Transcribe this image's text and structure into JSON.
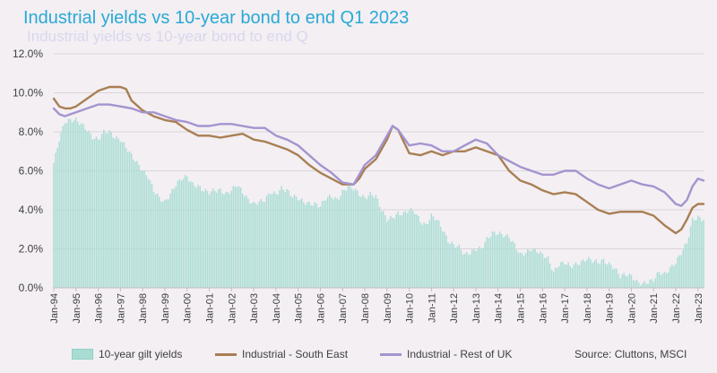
{
  "chart_data": {
    "type": "bar+line",
    "title": "Industrial yields vs 10-year bond to end Q1 2023",
    "subtitle_ghost": "Industrial yields vs 10-year bond to end Q",
    "source": "Source: Cluttons, MSCI",
    "y_ticks": [
      "0.0%",
      "2.0%",
      "4.0%",
      "6.0%",
      "8.0%",
      "10.0%",
      "12.0%"
    ],
    "ylim": [
      0,
      12
    ],
    "x_ticks": [
      "Jan-94",
      "Jan-95",
      "Jan-96",
      "Jan-97",
      "Jan-98",
      "Jan-99",
      "Jan-00",
      "Jan-01",
      "Jan-02",
      "Jan-03",
      "Jan-04",
      "Jan-05",
      "Jan-06",
      "Jan-07",
      "Jan-08",
      "Jan-09",
      "Jan-10",
      "Jan-11",
      "Jan-12",
      "Jan-13",
      "Jan-14",
      "Jan-15",
      "Jan-16",
      "Jan-17",
      "Jan-18",
      "Jan-19",
      "Jan-20",
      "Jan-21",
      "Jan-22",
      "Jan-23"
    ],
    "x_range": [
      1994.0,
      2023.25
    ],
    "legend_position": "bottom",
    "series": [
      {
        "name": "10-year gilt yields",
        "kind": "bar",
        "color": "#a9ddd4",
        "points": [
          [
            1994.0,
            6.4
          ],
          [
            1994.25,
            7.6
          ],
          [
            1994.5,
            8.5
          ],
          [
            1994.75,
            8.6
          ],
          [
            1995.0,
            8.6
          ],
          [
            1995.25,
            8.4
          ],
          [
            1995.5,
            8.1
          ],
          [
            1995.75,
            7.7
          ],
          [
            1996.0,
            7.6
          ],
          [
            1996.25,
            8.0
          ],
          [
            1996.5,
            8.0
          ],
          [
            1996.75,
            7.7
          ],
          [
            1997.0,
            7.6
          ],
          [
            1997.25,
            7.2
          ],
          [
            1997.5,
            6.8
          ],
          [
            1997.75,
            6.4
          ],
          [
            1998.0,
            6.0
          ],
          [
            1998.25,
            5.7
          ],
          [
            1998.5,
            5.0
          ],
          [
            1998.75,
            4.6
          ],
          [
            1999.0,
            4.4
          ],
          [
            1999.25,
            4.8
          ],
          [
            1999.5,
            5.3
          ],
          [
            1999.75,
            5.6
          ],
          [
            2000.0,
            5.7
          ],
          [
            2000.25,
            5.3
          ],
          [
            2000.5,
            5.2
          ],
          [
            2000.75,
            5.0
          ],
          [
            2001.0,
            4.9
          ],
          [
            2001.25,
            5.0
          ],
          [
            2001.5,
            5.0
          ],
          [
            2001.75,
            4.8
          ],
          [
            2002.0,
            5.0
          ],
          [
            2002.25,
            5.3
          ],
          [
            2002.5,
            4.9
          ],
          [
            2002.75,
            4.5
          ],
          [
            2003.0,
            4.3
          ],
          [
            2003.25,
            4.4
          ],
          [
            2003.5,
            4.5
          ],
          [
            2003.75,
            4.9
          ],
          [
            2004.0,
            4.8
          ],
          [
            2004.25,
            5.1
          ],
          [
            2004.5,
            5.0
          ],
          [
            2004.75,
            4.7
          ],
          [
            2005.0,
            4.6
          ],
          [
            2005.25,
            4.4
          ],
          [
            2005.5,
            4.3
          ],
          [
            2005.75,
            4.3
          ],
          [
            2006.0,
            4.2
          ],
          [
            2006.25,
            4.6
          ],
          [
            2006.5,
            4.7
          ],
          [
            2006.75,
            4.5
          ],
          [
            2007.0,
            4.9
          ],
          [
            2007.25,
            5.2
          ],
          [
            2007.5,
            5.1
          ],
          [
            2007.75,
            4.8
          ],
          [
            2008.0,
            4.6
          ],
          [
            2008.25,
            4.8
          ],
          [
            2008.5,
            4.7
          ],
          [
            2008.75,
            4.0
          ],
          [
            2009.0,
            3.5
          ],
          [
            2009.25,
            3.6
          ],
          [
            2009.5,
            3.8
          ],
          [
            2009.75,
            3.8
          ],
          [
            2010.0,
            4.0
          ],
          [
            2010.25,
            3.9
          ],
          [
            2010.5,
            3.4
          ],
          [
            2010.75,
            3.2
          ],
          [
            2011.0,
            3.7
          ],
          [
            2011.25,
            3.5
          ],
          [
            2011.5,
            3.0
          ],
          [
            2011.75,
            2.4
          ],
          [
            2012.0,
            2.2
          ],
          [
            2012.25,
            2.1
          ],
          [
            2012.5,
            1.7
          ],
          [
            2012.75,
            1.8
          ],
          [
            2013.0,
            2.0
          ],
          [
            2013.25,
            2.0
          ],
          [
            2013.5,
            2.5
          ],
          [
            2013.75,
            2.8
          ],
          [
            2014.0,
            2.8
          ],
          [
            2014.25,
            2.7
          ],
          [
            2014.5,
            2.6
          ],
          [
            2014.75,
            2.2
          ],
          [
            2015.0,
            1.7
          ],
          [
            2015.25,
            1.8
          ],
          [
            2015.5,
            2.0
          ],
          [
            2015.75,
            1.9
          ],
          [
            2016.0,
            1.7
          ],
          [
            2016.25,
            1.5
          ],
          [
            2016.5,
            0.8
          ],
          [
            2016.75,
            1.2
          ],
          [
            2017.0,
            1.3
          ],
          [
            2017.25,
            1.1
          ],
          [
            2017.5,
            1.2
          ],
          [
            2017.75,
            1.3
          ],
          [
            2018.0,
            1.5
          ],
          [
            2018.25,
            1.4
          ],
          [
            2018.5,
            1.3
          ],
          [
            2018.75,
            1.4
          ],
          [
            2019.0,
            1.2
          ],
          [
            2019.25,
            1.0
          ],
          [
            2019.5,
            0.6
          ],
          [
            2019.75,
            0.7
          ],
          [
            2020.0,
            0.6
          ],
          [
            2020.25,
            0.3
          ],
          [
            2020.5,
            0.2
          ],
          [
            2020.75,
            0.3
          ],
          [
            2021.0,
            0.4
          ],
          [
            2021.25,
            0.8
          ],
          [
            2021.5,
            0.7
          ],
          [
            2021.75,
            1.0
          ],
          [
            2022.0,
            1.3
          ],
          [
            2022.25,
            1.8
          ],
          [
            2022.5,
            2.3
          ],
          [
            2022.75,
            3.5
          ],
          [
            2023.0,
            3.6
          ],
          [
            2023.25,
            3.5
          ]
        ]
      },
      {
        "name": "Industrial - South East",
        "kind": "line",
        "color": "#a97f53",
        "points": [
          [
            1994.0,
            9.7
          ],
          [
            1994.25,
            9.3
          ],
          [
            1994.5,
            9.2
          ],
          [
            1994.75,
            9.2
          ],
          [
            1995.0,
            9.3
          ],
          [
            1995.5,
            9.7
          ],
          [
            1996.0,
            10.1
          ],
          [
            1996.5,
            10.3
          ],
          [
            1997.0,
            10.3
          ],
          [
            1997.25,
            10.2
          ],
          [
            1997.5,
            9.6
          ],
          [
            1998.0,
            9.1
          ],
          [
            1998.5,
            8.8
          ],
          [
            1999.0,
            8.6
          ],
          [
            1999.5,
            8.5
          ],
          [
            2000.0,
            8.1
          ],
          [
            2000.5,
            7.8
          ],
          [
            2001.0,
            7.8
          ],
          [
            2001.5,
            7.7
          ],
          [
            2002.0,
            7.8
          ],
          [
            2002.5,
            7.9
          ],
          [
            2003.0,
            7.6
          ],
          [
            2003.5,
            7.5
          ],
          [
            2004.0,
            7.3
          ],
          [
            2004.5,
            7.1
          ],
          [
            2005.0,
            6.8
          ],
          [
            2005.5,
            6.3
          ],
          [
            2006.0,
            5.9
          ],
          [
            2006.5,
            5.6
          ],
          [
            2007.0,
            5.3
          ],
          [
            2007.5,
            5.3
          ],
          [
            2007.75,
            5.6
          ],
          [
            2008.0,
            6.1
          ],
          [
            2008.5,
            6.6
          ],
          [
            2009.0,
            7.6
          ],
          [
            2009.25,
            8.3
          ],
          [
            2009.5,
            8.1
          ],
          [
            2010.0,
            6.9
          ],
          [
            2010.5,
            6.8
          ],
          [
            2011.0,
            7.0
          ],
          [
            2011.5,
            6.8
          ],
          [
            2012.0,
            7.0
          ],
          [
            2012.5,
            7.0
          ],
          [
            2013.0,
            7.2
          ],
          [
            2013.5,
            7.0
          ],
          [
            2014.0,
            6.8
          ],
          [
            2014.5,
            6.0
          ],
          [
            2015.0,
            5.5
          ],
          [
            2015.5,
            5.3
          ],
          [
            2016.0,
            5.0
          ],
          [
            2016.5,
            4.8
          ],
          [
            2017.0,
            4.9
          ],
          [
            2017.5,
            4.8
          ],
          [
            2018.0,
            4.4
          ],
          [
            2018.5,
            4.0
          ],
          [
            2019.0,
            3.8
          ],
          [
            2019.5,
            3.9
          ],
          [
            2020.0,
            3.9
          ],
          [
            2020.5,
            3.9
          ],
          [
            2021.0,
            3.7
          ],
          [
            2021.5,
            3.2
          ],
          [
            2022.0,
            2.8
          ],
          [
            2022.25,
            3.0
          ],
          [
            2022.5,
            3.5
          ],
          [
            2022.75,
            4.1
          ],
          [
            2023.0,
            4.3
          ],
          [
            2023.25,
            4.3
          ]
        ]
      },
      {
        "name": "Industrial - Rest of UK",
        "kind": "line",
        "color": "#a593cf",
        "points": [
          [
            1994.0,
            9.2
          ],
          [
            1994.25,
            8.9
          ],
          [
            1994.5,
            8.8
          ],
          [
            1994.75,
            8.9
          ],
          [
            1995.0,
            9.0
          ],
          [
            1995.5,
            9.2
          ],
          [
            1996.0,
            9.4
          ],
          [
            1996.5,
            9.4
          ],
          [
            1997.0,
            9.3
          ],
          [
            1997.5,
            9.2
          ],
          [
            1998.0,
            9.0
          ],
          [
            1998.5,
            9.0
          ],
          [
            1999.0,
            8.8
          ],
          [
            1999.5,
            8.6
          ],
          [
            2000.0,
            8.5
          ],
          [
            2000.5,
            8.3
          ],
          [
            2001.0,
            8.3
          ],
          [
            2001.5,
            8.4
          ],
          [
            2002.0,
            8.4
          ],
          [
            2002.5,
            8.3
          ],
          [
            2003.0,
            8.2
          ],
          [
            2003.5,
            8.2
          ],
          [
            2004.0,
            7.8
          ],
          [
            2004.5,
            7.6
          ],
          [
            2005.0,
            7.3
          ],
          [
            2005.5,
            6.8
          ],
          [
            2006.0,
            6.3
          ],
          [
            2006.5,
            5.9
          ],
          [
            2007.0,
            5.4
          ],
          [
            2007.5,
            5.3
          ],
          [
            2007.75,
            5.8
          ],
          [
            2008.0,
            6.3
          ],
          [
            2008.5,
            6.8
          ],
          [
            2009.0,
            7.8
          ],
          [
            2009.25,
            8.3
          ],
          [
            2009.5,
            8.1
          ],
          [
            2010.0,
            7.3
          ],
          [
            2010.5,
            7.4
          ],
          [
            2011.0,
            7.3
          ],
          [
            2011.5,
            7.0
          ],
          [
            2012.0,
            7.0
          ],
          [
            2012.5,
            7.3
          ],
          [
            2013.0,
            7.6
          ],
          [
            2013.5,
            7.4
          ],
          [
            2014.0,
            6.8
          ],
          [
            2014.5,
            6.5
          ],
          [
            2015.0,
            6.2
          ],
          [
            2015.5,
            6.0
          ],
          [
            2016.0,
            5.8
          ],
          [
            2016.5,
            5.8
          ],
          [
            2017.0,
            6.0
          ],
          [
            2017.5,
            6.0
          ],
          [
            2018.0,
            5.6
          ],
          [
            2018.5,
            5.3
          ],
          [
            2019.0,
            5.1
          ],
          [
            2019.5,
            5.3
          ],
          [
            2020.0,
            5.5
          ],
          [
            2020.5,
            5.3
          ],
          [
            2021.0,
            5.2
          ],
          [
            2021.5,
            4.9
          ],
          [
            2022.0,
            4.3
          ],
          [
            2022.25,
            4.2
          ],
          [
            2022.5,
            4.5
          ],
          [
            2022.75,
            5.2
          ],
          [
            2023.0,
            5.6
          ],
          [
            2023.25,
            5.5
          ]
        ]
      }
    ]
  }
}
